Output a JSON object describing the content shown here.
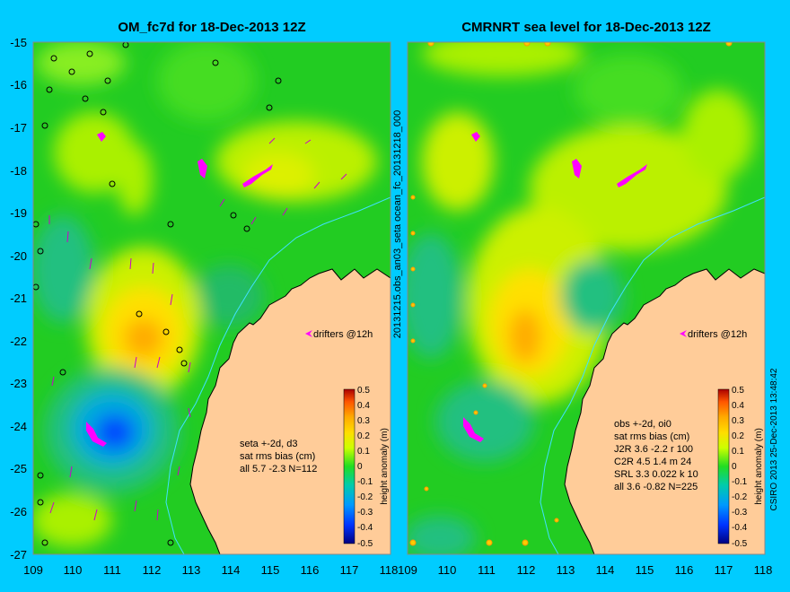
{
  "chart_data": [
    {
      "type": "heatmap",
      "title": "OM_fc7d for 18-Dec-2013 12Z",
      "xlim": [
        109,
        118
      ],
      "ylim": [
        -27,
        -15
      ],
      "xticks": [
        "109",
        "110",
        "111",
        "112",
        "113",
        "114",
        "115",
        "116",
        "117",
        "118"
      ],
      "yticks": [
        "-15",
        "-16",
        "-17",
        "-18",
        "-19",
        "-20",
        "-21",
        "-22",
        "-23",
        "-24",
        "-25",
        "-26",
        "-27"
      ],
      "colorbar": {
        "label": "height anomaly (m)",
        "min": -0.5,
        "max": 0.5,
        "ticks": [
          "0.5",
          "0.4",
          "0.3",
          "0.2",
          "0.1",
          "0",
          "-0.1",
          "-0.2",
          "-0.3",
          "-0.4",
          "-0.5"
        ]
      },
      "stats": [
        "seta +-2d, d3",
        "sat rms bias (cm)",
        "all 5.7 -2.3 N=112"
      ],
      "drifters_label": "drifters @12h",
      "features": [
        {
          "lon": 111.8,
          "lat": -22.0,
          "anomaly": 0.25
        },
        {
          "lon": 111.3,
          "lat": -17.3,
          "anomaly": 0.15
        },
        {
          "lon": 114.8,
          "lat": -18.3,
          "anomaly": 0.2
        },
        {
          "lon": 111.1,
          "lat": -24.2,
          "anomaly": -0.3
        },
        {
          "lon": 109.6,
          "lat": -19.8,
          "anomaly": -0.1
        },
        {
          "lon": 113.5,
          "lat": -21.3,
          "anomaly": -0.05
        }
      ]
    },
    {
      "type": "heatmap",
      "title": "CMRNRT sea level  for 18-Dec-2013 12Z",
      "xlim": [
        109,
        118
      ],
      "ylim": [
        -27,
        -15
      ],
      "xticks": [
        "109",
        "110",
        "111",
        "112",
        "113",
        "114",
        "115",
        "116",
        "117",
        "118"
      ],
      "colorbar": {
        "label": "height anomaly (m)",
        "min": -0.5,
        "max": 0.5,
        "ticks": [
          "0.5",
          "0.4",
          "0.3",
          "0.2",
          "0.1",
          "0",
          "-0.1",
          "-0.2",
          "-0.3",
          "-0.4",
          "-0.5"
        ]
      },
      "stats": [
        "obs +-2d, oi0",
        "sat rms bias (cm)",
        "J2R   3.6 -2.2 r 100",
        "C2R   4.5 1.4 m 24",
        "SRL   3.3 0.022 k 10",
        "all    3.6 -0.82 N=225"
      ],
      "drifters_label": "drifters @12h",
      "features": [
        {
          "lon": 112.0,
          "lat": -22.2,
          "anomaly": 0.25
        },
        {
          "lon": 111.0,
          "lat": -18.0,
          "anomaly": 0.15
        },
        {
          "lon": 114.6,
          "lat": -18.4,
          "anomaly": 0.15
        },
        {
          "lon": 111.0,
          "lat": -24.8,
          "anomaly": -0.1
        },
        {
          "lon": 109.5,
          "lat": -22.5,
          "anomaly": -0.1
        },
        {
          "lon": 113.6,
          "lat": -21.2,
          "anomaly": -0.1
        }
      ]
    }
  ],
  "side_label": "20131215.obs_an03_seta    ocean_fc_20131218_000",
  "credit": "CSIRO 2013   25-Dec-2013 13:48:42"
}
